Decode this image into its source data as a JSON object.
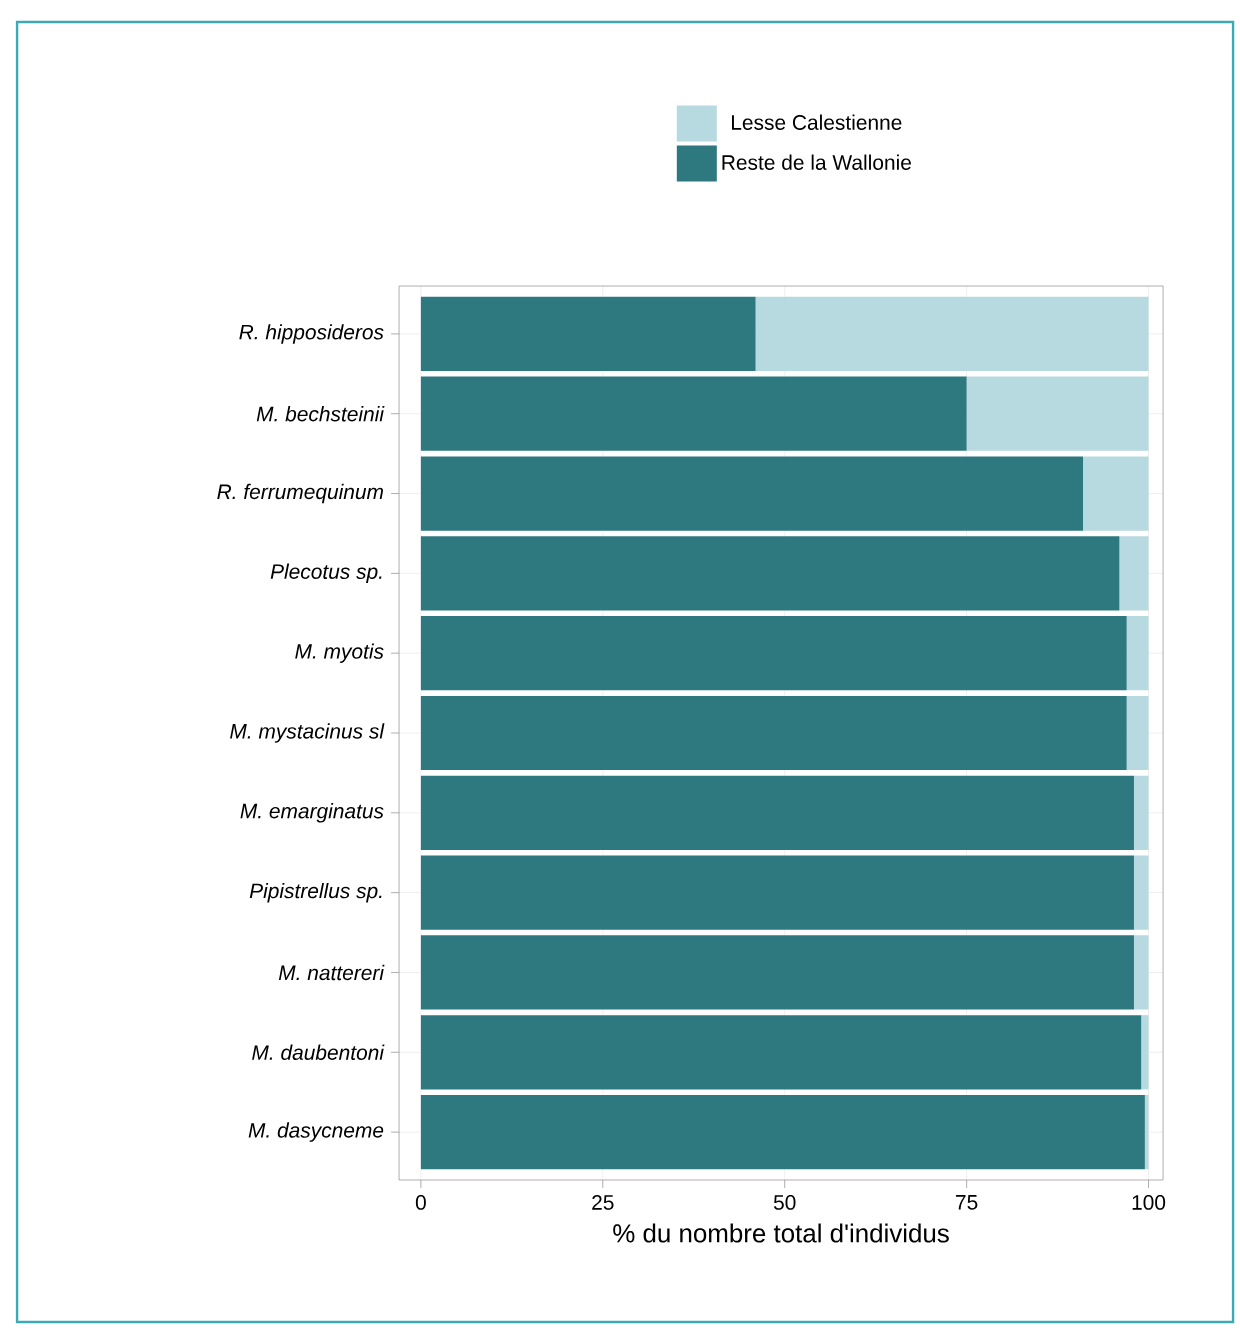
{
  "chart_data": {
    "type": "bar",
    "orientation": "horizontal",
    "stacked": true,
    "xlabel": "% du nombre total d'individus",
    "categories": [
      "R. hipposideros",
      "M. bechsteinii",
      "R. ferrumequinum",
      "Plecotus sp.",
      "M. myotis",
      "M. mystacinus sl",
      "M. emarginatus",
      "Pipistrellus sp.",
      "M. nattereri",
      "M. daubentoni",
      "M. dasycneme"
    ],
    "series": [
      {
        "name": "Reste de la Wallonie",
        "color": "#2e7880",
        "values": [
          46,
          75,
          91,
          96,
          97,
          97,
          98,
          98,
          98,
          99,
          99.5
        ]
      },
      {
        "name": "Lesse Calestienne",
        "color": "#b7d9e0",
        "values": [
          54,
          25,
          9,
          4,
          3,
          3,
          2,
          2,
          2,
          1,
          0.5
        ]
      }
    ],
    "xlim": [
      -3,
      102
    ],
    "xticks": [
      0,
      25,
      50,
      75,
      100
    ],
    "grid": true,
    "legend": "top"
  }
}
